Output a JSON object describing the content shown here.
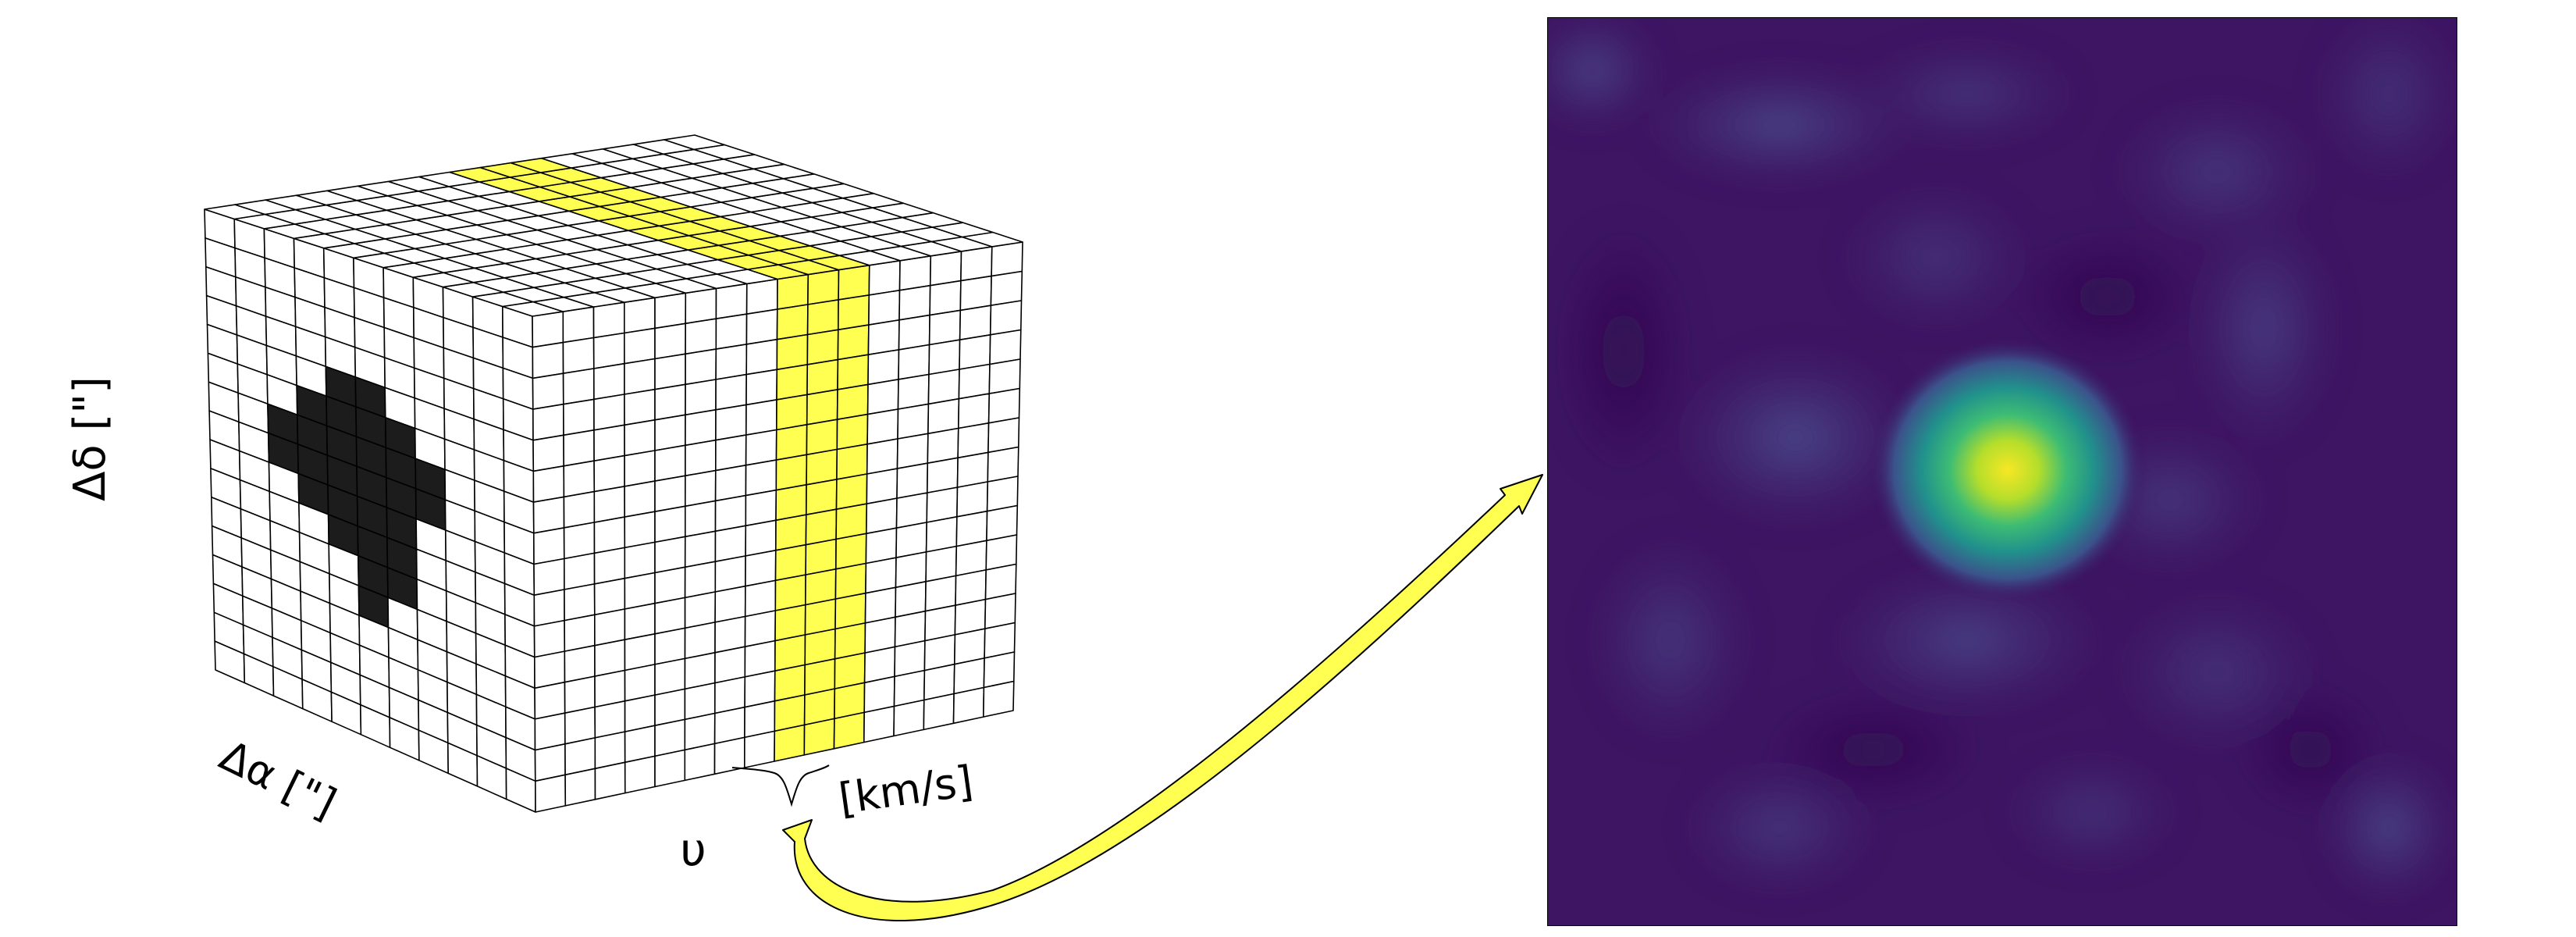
{
  "labels": {
    "dec_axis": "Δδ [\"]",
    "ra_axis": "Δα [\"]",
    "vel_symbol": "υ",
    "vel_unit": "[km/s]"
  },
  "cube": {
    "columns_front": 16,
    "rows": 16,
    "depth_cells": 11,
    "highlight_columns": [
      8,
      9,
      10
    ],
    "source_cells_side": [
      [
        4,
        4
      ],
      [
        4,
        5
      ],
      [
        5,
        3
      ],
      [
        5,
        4
      ],
      [
        5,
        5
      ],
      [
        5,
        6
      ],
      [
        6,
        2
      ],
      [
        6,
        3
      ],
      [
        6,
        4
      ],
      [
        6,
        5
      ],
      [
        6,
        6
      ],
      [
        6,
        7
      ],
      [
        7,
        2
      ],
      [
        7,
        3
      ],
      [
        7,
        4
      ],
      [
        7,
        5
      ],
      [
        7,
        6
      ],
      [
        7,
        7
      ],
      [
        8,
        3
      ],
      [
        8,
        4
      ],
      [
        8,
        5
      ],
      [
        8,
        6
      ],
      [
        9,
        4
      ],
      [
        9,
        5
      ],
      [
        9,
        6
      ],
      [
        10,
        5
      ],
      [
        10,
        6
      ],
      [
        11,
        5
      ]
    ]
  },
  "colors": {
    "highlight": "#ffff52",
    "source": "#1c1c1c",
    "grid_line": "#000000",
    "arrow": "#ffff52",
    "map_background": "#3e1563",
    "map_peak": "#f7e725",
    "map_mid": "#2e9c8a",
    "map_low": "#433e86"
  },
  "map": {
    "colormap": "viridis"
  }
}
